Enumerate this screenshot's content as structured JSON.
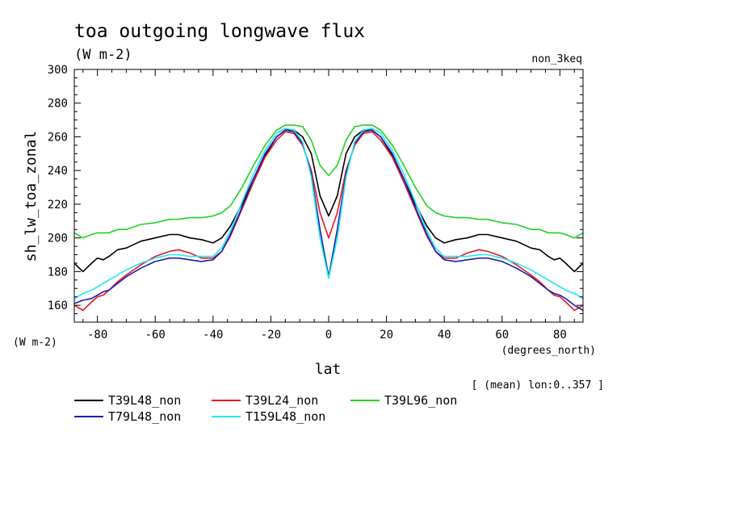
{
  "chart_data": {
    "type": "line",
    "title": "toa outgoing longwave flux",
    "units": "(W m-2)",
    "experiment": "non_3keq",
    "ylabel": "sh_lw_toa_zonal",
    "ylabel_units": "(W m-2)",
    "xlabel": "lat",
    "xlabel_units": "(degrees_north)",
    "averaging_note": "[ (mean) lon:0..357 ]",
    "xlim": [
      -88,
      88
    ],
    "ylim": [
      150,
      300
    ],
    "x_ticks": [
      -80,
      -60,
      -40,
      -20,
      0,
      20,
      40,
      60,
      80
    ],
    "y_ticks": [
      160,
      180,
      200,
      220,
      240,
      260,
      280,
      300
    ],
    "x": [
      -88,
      -85,
      -82,
      -80,
      -78,
      -76,
      -73,
      -70,
      -65,
      -60,
      -55,
      -52,
      -48,
      -44,
      -40,
      -37,
      -34,
      -30,
      -26,
      -22,
      -18,
      -15,
      -12,
      -9,
      -6,
      -3,
      0,
      3,
      6,
      9,
      12,
      15,
      18,
      22,
      26,
      30,
      34,
      37,
      40,
      44,
      48,
      52,
      55,
      60,
      65,
      70,
      73,
      76,
      78,
      80,
      82,
      85,
      88
    ],
    "series": [
      {
        "name": "T39L48_non",
        "color": "#000000",
        "values": [
          185,
          180,
          185,
          188,
          187,
          189,
          193,
          194,
          198,
          200,
          202,
          202,
          200,
          199,
          197,
          200,
          207,
          220,
          235,
          249,
          260,
          264,
          264,
          260,
          250,
          225,
          213,
          225,
          250,
          260,
          264,
          264,
          260,
          249,
          235,
          220,
          207,
          200,
          197,
          199,
          200,
          202,
          202,
          200,
          198,
          194,
          193,
          189,
          187,
          188,
          185,
          180,
          185
        ]
      },
      {
        "name": "T39L24_non",
        "color": "#e8161f",
        "values": [
          160,
          157,
          162,
          165,
          166,
          169,
          174,
          178,
          184,
          189,
          192,
          193,
          191,
          188,
          188,
          192,
          201,
          217,
          233,
          248,
          258,
          263,
          262,
          255,
          240,
          215,
          200,
          215,
          240,
          255,
          262,
          263,
          258,
          248,
          233,
          217,
          201,
          192,
          188,
          188,
          191,
          193,
          192,
          189,
          184,
          178,
          174,
          169,
          166,
          165,
          162,
          157,
          160
        ]
      },
      {
        "name": "T39L96_non",
        "color": "#1ed31e",
        "values": [
          203,
          200,
          202,
          203,
          203,
          203,
          205,
          205,
          208,
          209,
          211,
          211,
          212,
          212,
          213,
          215,
          219,
          230,
          243,
          255,
          264,
          267,
          267,
          266,
          258,
          243,
          237,
          243,
          258,
          266,
          267,
          267,
          264,
          255,
          243,
          230,
          219,
          215,
          213,
          212,
          212,
          211,
          211,
          209,
          208,
          205,
          205,
          203,
          203,
          203,
          202,
          200,
          203
        ]
      },
      {
        "name": "T79L48_non",
        "color": "#1c1cb4",
        "values": [
          161,
          163,
          164,
          166,
          168,
          169,
          173,
          177,
          182,
          186,
          188,
          188,
          187,
          186,
          187,
          192,
          202,
          218,
          235,
          250,
          260,
          264,
          263,
          256,
          238,
          205,
          177,
          205,
          238,
          256,
          263,
          264,
          260,
          250,
          235,
          218,
          202,
          192,
          187,
          186,
          187,
          188,
          188,
          186,
          182,
          177,
          173,
          169,
          167,
          166,
          164,
          160,
          157
        ]
      },
      {
        "name": "T159L48_non",
        "color": "#22e8ee",
        "values": [
          164,
          167,
          169,
          171,
          173,
          175,
          178,
          181,
          185,
          188,
          190,
          190,
          189,
          189,
          189,
          194,
          204,
          221,
          238,
          252,
          262,
          265,
          264,
          257,
          236,
          200,
          176,
          200,
          236,
          257,
          264,
          265,
          262,
          252,
          238,
          221,
          204,
          194,
          189,
          189,
          189,
          190,
          190,
          188,
          185,
          181,
          178,
          175,
          173,
          171,
          169,
          167,
          164
        ]
      }
    ]
  }
}
